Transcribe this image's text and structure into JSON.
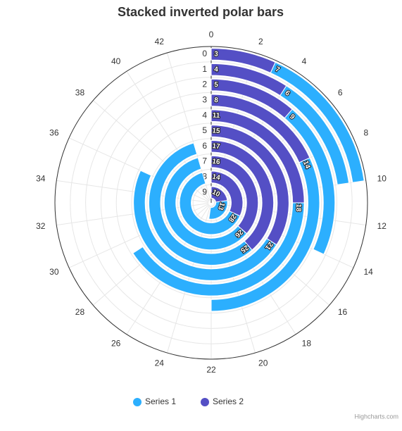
{
  "chart_data": {
    "type": "polar-inverted-stacked-bar",
    "title": "Stacked inverted polar bars",
    "categories": [
      "0",
      "1",
      "2",
      "3",
      "4",
      "5",
      "6",
      "7",
      "8",
      "9"
    ],
    "series": [
      {
        "name": "Series 1",
        "color": "#2caffe",
        "values": [
          7,
          6,
          9,
          14,
          18,
          21,
          25,
          26,
          28,
          13
        ]
      },
      {
        "name": "Series 2",
        "color": "#544fc5",
        "values": [
          3,
          4,
          5,
          8,
          11,
          15,
          17,
          16,
          14,
          10
        ]
      }
    ],
    "ylim": [
      0,
      44
    ],
    "yticks": [
      0,
      2,
      4,
      6,
      8,
      10,
      12,
      14,
      16,
      18,
      20,
      22,
      24,
      26,
      28,
      30,
      32,
      34,
      36,
      38,
      40,
      42
    ],
    "grid": true,
    "legend": "bottom",
    "credits": "Highcharts.com"
  }
}
